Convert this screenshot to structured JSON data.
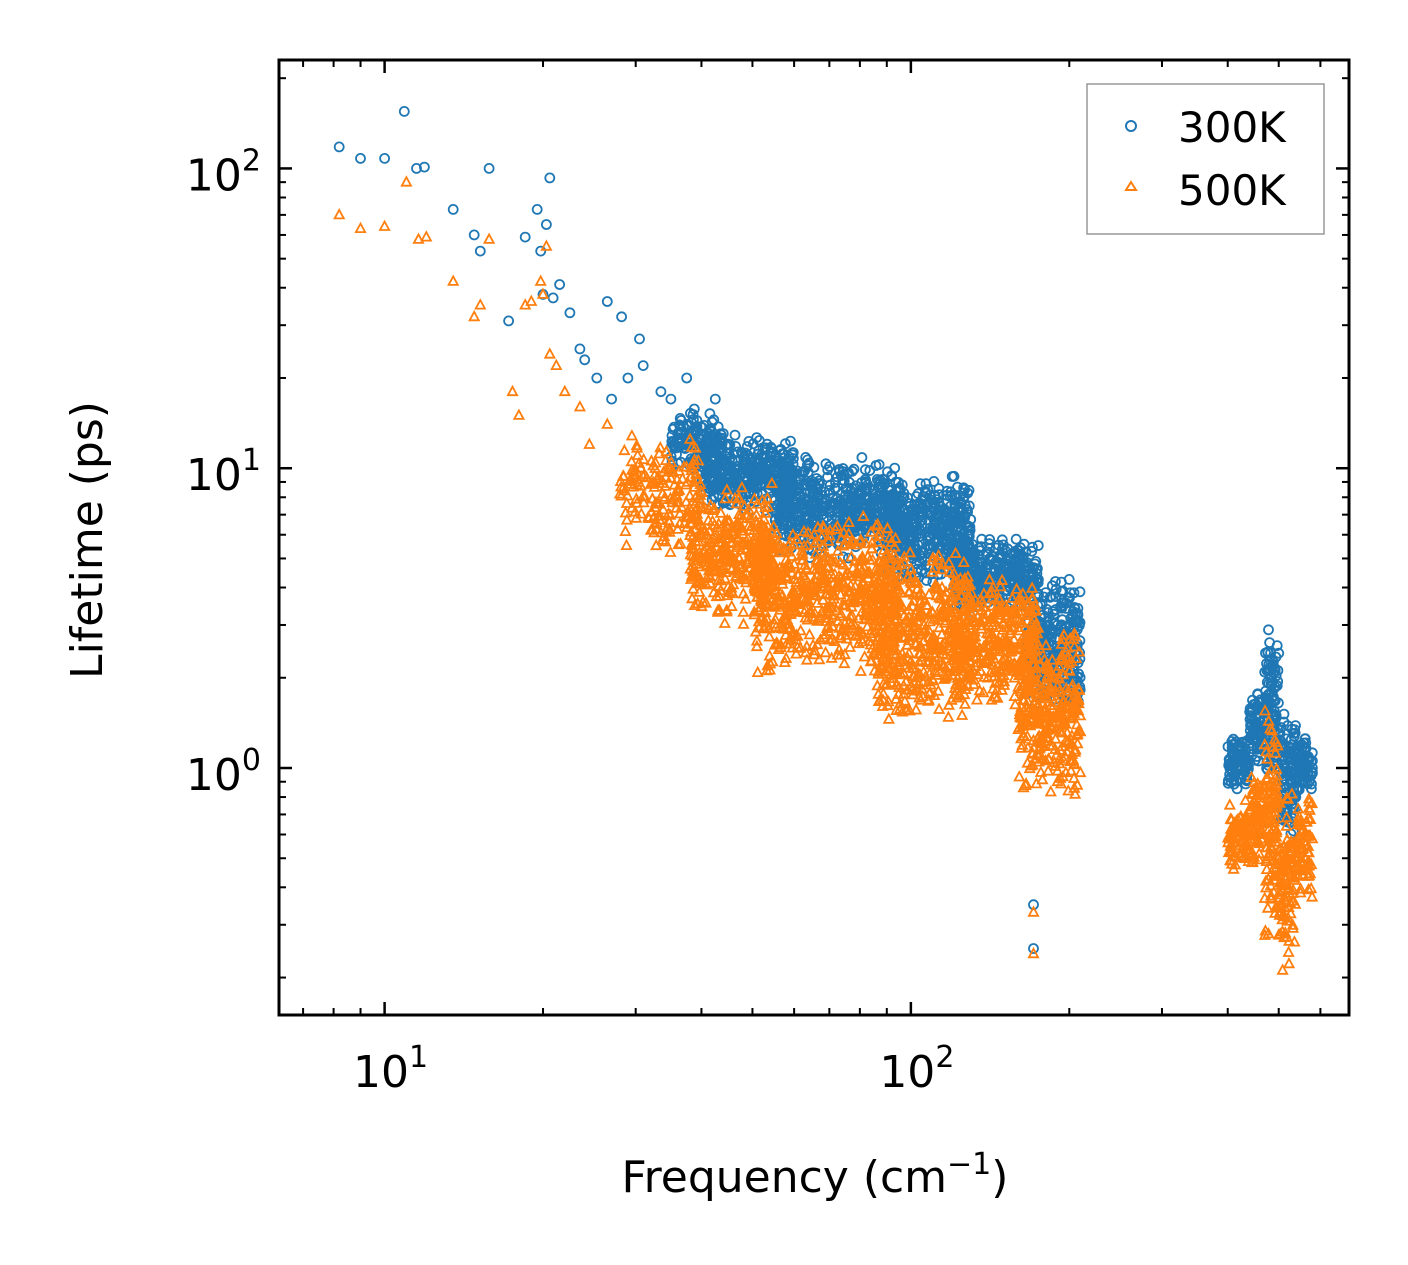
{
  "chart_data": {
    "type": "scatter",
    "title": "",
    "xlabel": "Frequency (cm",
    "xlabel_sup": "−1",
    "xlabel_tail": ")",
    "ylabel": "Lifetime (ps)",
    "xscale": "log",
    "yscale": "log",
    "xlim": [
      6.3,
      680
    ],
    "ylim": [
      0.15,
      230
    ],
    "x_ticks": [
      {
        "base": "10",
        "exp": "1",
        "value": 10
      },
      {
        "base": "10",
        "exp": "2",
        "value": 100
      }
    ],
    "y_ticks": [
      {
        "base": "10",
        "exp": "0",
        "value": 1
      },
      {
        "base": "10",
        "exp": "1",
        "value": 10
      },
      {
        "base": "10",
        "exp": "2",
        "value": 100
      }
    ],
    "legend_position": "top-right",
    "series": [
      {
        "name": "300K",
        "color": "#1f77b4",
        "marker": "circle",
        "x": [
          8.2,
          9.0,
          10.0,
          10.9,
          11.5,
          11.9,
          13.5,
          14.8,
          15.2,
          15.8,
          17.2,
          18.5,
          19.5,
          19.8,
          20.0,
          20.3,
          20.6,
          20.9,
          21.5,
          22.5,
          23.5,
          24.0,
          25.3,
          26.5,
          27.0,
          28.2,
          29.0,
          30.5,
          31.0,
          33.5,
          35.0,
          37.5,
          42.5,
          45.0,
          171.0,
          171.0
        ],
        "y": [
          118,
          108,
          108,
          155,
          100,
          101,
          73,
          60,
          53,
          100,
          31,
          59,
          73,
          53,
          38,
          65,
          93,
          37,
          41,
          33,
          25,
          23,
          20,
          36,
          17,
          32,
          20,
          27,
          22,
          18,
          17,
          20,
          17,
          12,
          0.35,
          0.25
        ],
        "clusters": [
          {
            "x": [
              35,
              45
            ],
            "y": [
              9,
              16
            ],
            "count": 150
          },
          {
            "x": [
              40,
              60
            ],
            "y": [
              7,
              13
            ],
            "count": 350
          },
          {
            "x": [
              55,
              95
            ],
            "y": [
              5.0,
              11
            ],
            "count": 550
          },
          {
            "x": [
              90,
              130
            ],
            "y": [
              4.0,
              9.5
            ],
            "count": 450
          },
          {
            "x": [
              120,
              175
            ],
            "y": [
              3.2,
              6
            ],
            "count": 350
          },
          {
            "x": [
              165,
              210
            ],
            "y": [
              1.5,
              4.5
            ],
            "count": 300
          },
          {
            "x": [
              400,
              440
            ],
            "y": [
              0.85,
              1.3
            ],
            "count": 90
          },
          {
            "x": [
              440,
              470
            ],
            "y": [
              1.0,
              1.85
            ],
            "count": 80
          },
          {
            "x": [
              470,
              500
            ],
            "y": [
              0.9,
              3.0
            ],
            "count": 110
          },
          {
            "x": [
              500,
              540
            ],
            "y": [
              0.55,
              1.6
            ],
            "count": 100
          },
          {
            "x": [
              540,
              580
            ],
            "y": [
              0.8,
              1.3
            ],
            "count": 70
          }
        ]
      },
      {
        "name": "500K",
        "color": "#ff7f0e",
        "marker": "triangle",
        "x": [
          8.2,
          9.0,
          10.0,
          11.0,
          11.6,
          12.0,
          13.5,
          14.8,
          15.2,
          15.8,
          17.5,
          18.0,
          18.5,
          19.0,
          19.8,
          20.0,
          20.3,
          20.6,
          21.2,
          22.0,
          23.5,
          24.5,
          26.5,
          28.0,
          171.0,
          171.0
        ],
        "y": [
          70,
          63,
          64,
          90,
          58,
          59,
          42,
          32,
          35,
          58,
          18,
          15,
          35,
          36,
          42,
          38,
          55,
          24,
          22,
          18,
          16,
          12,
          14,
          8.2,
          0.33,
          0.24
        ],
        "clusters": [
          {
            "x": [
              28,
              40
            ],
            "y": [
              5.0,
              13
            ],
            "count": 180
          },
          {
            "x": [
              38,
              55
            ],
            "y": [
              3.0,
              9
            ],
            "count": 350
          },
          {
            "x": [
              50,
              95
            ],
            "y": [
              2.0,
              7.0
            ],
            "count": 650
          },
          {
            "x": [
              85,
              130
            ],
            "y": [
              1.4,
              5.5
            ],
            "count": 450
          },
          {
            "x": [
              120,
              175
            ],
            "y": [
              1.6,
              4.5
            ],
            "count": 350
          },
          {
            "x": [
              160,
              210
            ],
            "y": [
              0.75,
              3.0
            ],
            "count": 320
          },
          {
            "x": [
              400,
              440
            ],
            "y": [
              0.45,
              0.8
            ],
            "count": 90
          },
          {
            "x": [
              440,
              470
            ],
            "y": [
              0.45,
              1.1
            ],
            "count": 80
          },
          {
            "x": [
              470,
              500
            ],
            "y": [
              0.25,
              1.8
            ],
            "count": 110
          },
          {
            "x": [
              500,
              540
            ],
            "y": [
              0.2,
              0.9
            ],
            "count": 100
          },
          {
            "x": [
              540,
              580
            ],
            "y": [
              0.35,
              0.85
            ],
            "count": 70
          }
        ]
      }
    ]
  }
}
